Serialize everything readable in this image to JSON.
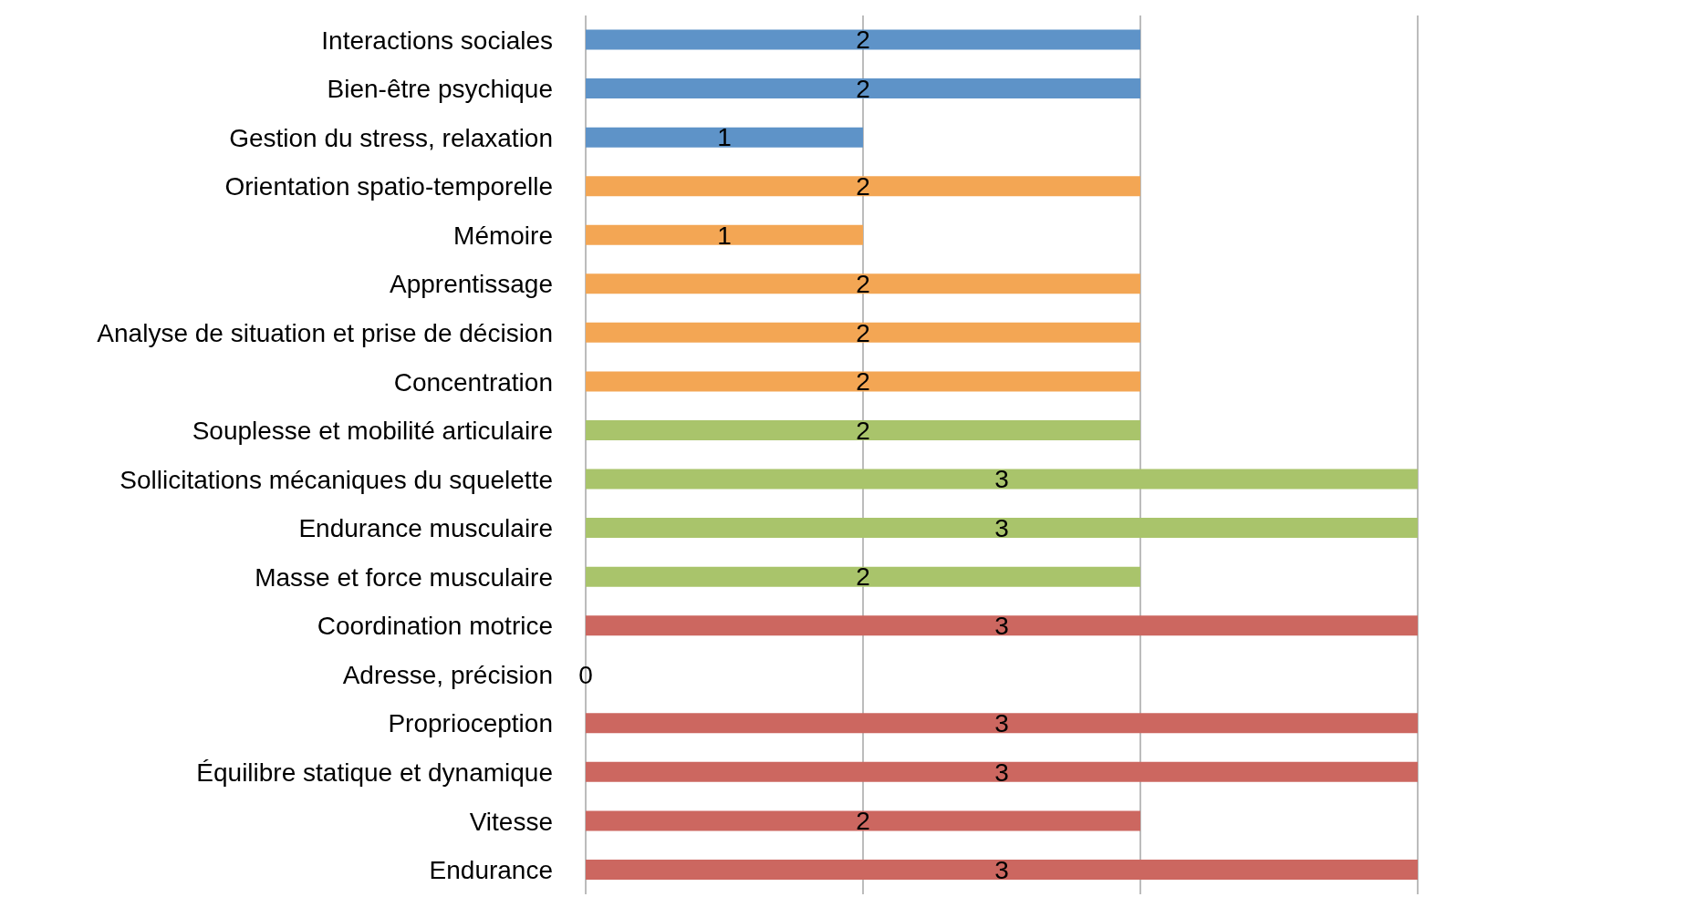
{
  "chart_data": {
    "type": "bar",
    "orientation": "horizontal",
    "categories": [
      "Interactions sociales",
      "Bien-être psychique",
      "Gestion du stress, relaxation",
      "Orientation spatio-temporelle",
      "Mémoire",
      "Apprentissage",
      "Analyse de situation et prise de décision",
      "Concentration",
      "Souplesse et mobilité articulaire",
      "Sollicitations mécaniques du squelette",
      "Endurance musculaire",
      "Masse et force musculaire",
      "Coordination motrice",
      "Adresse, précision",
      "Proprioception",
      "Équilibre statique et dynamique",
      "Vitesse",
      "Endurance"
    ],
    "values": [
      2,
      2,
      1,
      2,
      1,
      2,
      2,
      2,
      2,
      3,
      3,
      2,
      3,
      0,
      3,
      3,
      2,
      3
    ],
    "colors": [
      "#5e93c8",
      "#5e93c8",
      "#5e93c8",
      "#f3a654",
      "#f3a654",
      "#f3a654",
      "#f3a654",
      "#f3a654",
      "#a9c46b",
      "#a9c46b",
      "#a9c46b",
      "#a9c46b",
      "#cc6760",
      "#cc6760",
      "#cc6760",
      "#cc6760",
      "#cc6760",
      "#cc6760"
    ],
    "xlim": [
      0,
      3
    ],
    "xticks": [
      {
        "value": 0,
        "label": null
      },
      {
        "value": 1,
        "label": null
      },
      {
        "value": 2,
        "label": null
      },
      {
        "value": 3,
        "label": null
      }
    ],
    "grid": "x",
    "data_labels": true,
    "tick_labels": "y"
  }
}
